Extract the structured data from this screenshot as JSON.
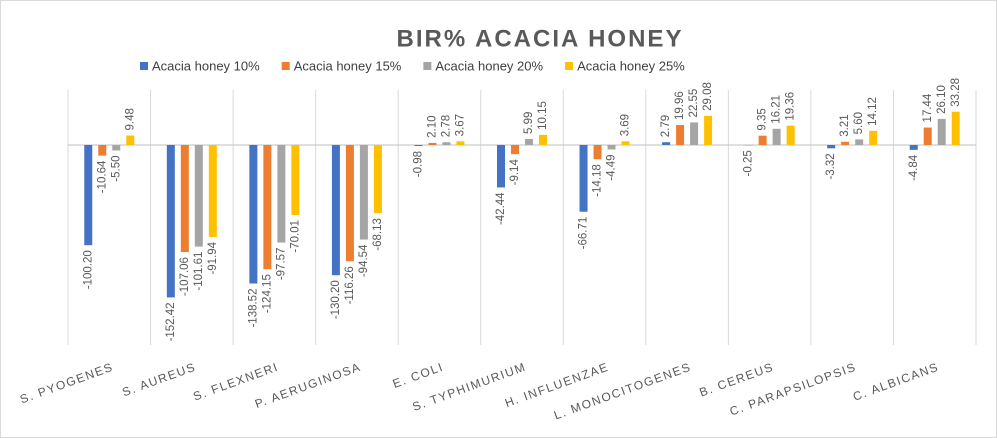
{
  "chart_data": {
    "type": "bar",
    "title": "BIR% ACACIA HONEY",
    "categories": [
      "S. PYOGENES",
      "S. AUREUS",
      "S. FLEXNERI",
      "P. AERUGINOSA",
      "E. COLI",
      "S. TYPHIMURIUM",
      "H. INFLUENZAE",
      "L. MONOCITOGENES",
      "B. CEREUS",
      "C. PARAPSILOPSIS",
      "C. ALBICANS"
    ],
    "series": [
      {
        "name": "Acacia honey 10%",
        "color": "#4472c4",
        "values": [
          -100.2,
          -152.42,
          -138.52,
          -130.2,
          -0.98,
          -42.44,
          -66.71,
          2.79,
          -0.25,
          -3.32,
          -4.84
        ],
        "value_labels": [
          "-100.20",
          "-152.42",
          "-138.52",
          "-130.20",
          "-0.98",
          "-42.44",
          "-66.71",
          "2.79",
          "-0.25",
          "-3.32",
          "-4.84"
        ]
      },
      {
        "name": "Acacia honey 15%",
        "color": "#ed7d31",
        "values": [
          -10.64,
          -107.06,
          -124.15,
          -116.26,
          2.1,
          -9.14,
          -14.18,
          19.96,
          9.35,
          3.21,
          17.44
        ],
        "value_labels": [
          "-10.64",
          "-107.06",
          "-124.15",
          "-116.26",
          "2.10",
          "-9.14",
          "-14.18",
          "19.96",
          "9.35",
          "3.21",
          "17.44"
        ]
      },
      {
        "name": "Acacia honey 20%",
        "color": "#a5a5a5",
        "values": [
          -5.5,
          -101.61,
          -97.57,
          -94.54,
          2.78,
          5.99,
          -4.49,
          22.55,
          16.21,
          5.6,
          26.1
        ],
        "value_labels": [
          "-5.50",
          "-101.61",
          "-97.57",
          "-94.54",
          "2.78",
          "5.99",
          "-4.49",
          "22.55",
          "16.21",
          "5.60",
          "26.10"
        ]
      },
      {
        "name": "Acacia honey 25%",
        "color": "#ffc000",
        "values": [
          9.48,
          -91.94,
          -70.01,
          -68.13,
          3.67,
          10.15,
          3.69,
          29.08,
          19.36,
          14.12,
          33.28
        ],
        "value_labels": [
          "9.48",
          "-91.94",
          "-70.01",
          "-68.13",
          "3.67",
          "10.15",
          "3.69",
          "29.08",
          "19.36",
          "14.12",
          "33.28"
        ]
      }
    ],
    "ylim": [
      -200,
      55
    ]
  }
}
